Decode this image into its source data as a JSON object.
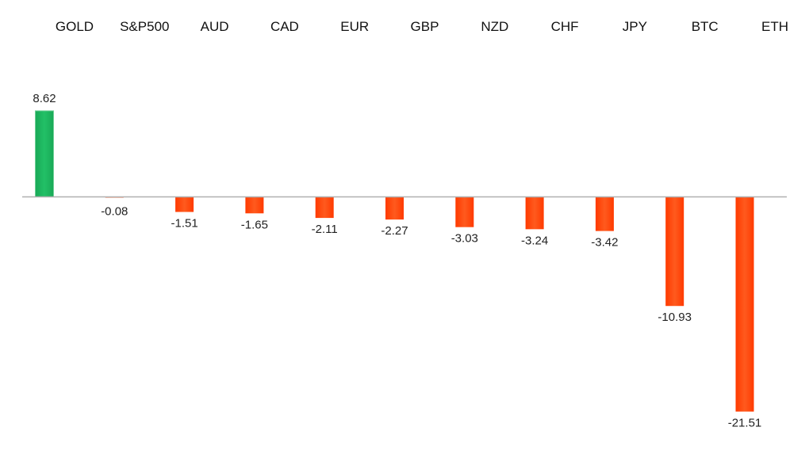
{
  "chart_data": {
    "type": "bar",
    "categories": [
      "GOLD",
      "S&P500",
      "AUD",
      "CAD",
      "EUR",
      "GBP",
      "NZD",
      "CHF",
      "JPY",
      "BTC",
      "ETH"
    ],
    "values": [
      8.62,
      -0.08,
      -1.51,
      -1.65,
      -2.11,
      -2.27,
      -3.03,
      -3.24,
      -3.42,
      -10.93,
      -21.51
    ],
    "value_labels": [
      "8.62",
      "-0.08",
      "-1.51",
      "-1.65",
      "-2.11",
      "-2.27",
      "-3.03",
      "-3.24",
      "-3.42",
      "-10.93",
      "-21.51"
    ],
    "title": "",
    "xlabel": "",
    "ylabel": "",
    "ylim": [
      -21.51,
      8.62
    ],
    "grid": false,
    "legend": "none",
    "category_label_position": "top",
    "colors": {
      "positive": "#1db360",
      "positive_light": "#23c267",
      "negative": "#ff3b00",
      "negative_light": "#ff5a1a",
      "axis": "#b0b0b0"
    }
  }
}
